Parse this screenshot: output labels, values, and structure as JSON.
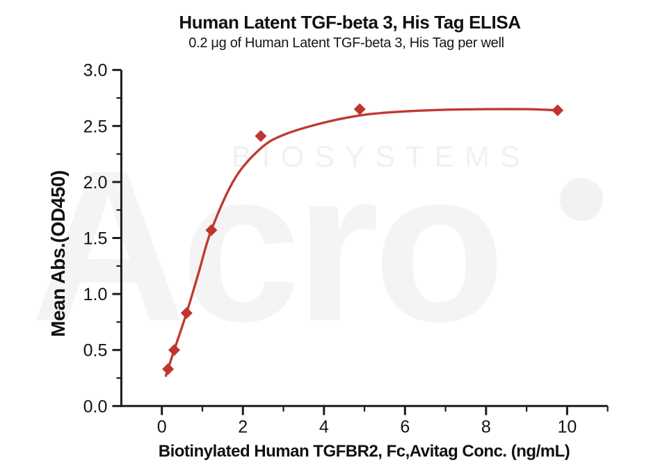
{
  "watermark": {
    "brand": "Acro",
    "sub_brand": "BIOSYSTEMS",
    "brand_color": "#f4f4f4",
    "sub_color": "#f1f1f1"
  },
  "chart_data": {
    "type": "scatter",
    "title": "Human Latent TGF-beta 3, His Tag ELISA",
    "subtitle": "0.2 μg of Human Latent TGF-beta 3, His Tag per well",
    "xlabel": "Biotinylated Human TGFBR2, Fc,Avitag Conc. (ng/mL)",
    "ylabel": "Mean Abs.(OD450)",
    "xlim": [
      -1,
      11
    ],
    "ylim": [
      0,
      3
    ],
    "grid": false,
    "legend": false,
    "marker": "diamond",
    "x": [
      0.153,
      0.305,
      0.61,
      1.221,
      2.441,
      4.883,
      9.766
    ],
    "y": [
      0.33,
      0.5,
      0.83,
      1.57,
      2.41,
      2.65,
      2.64
    ],
    "x_ticks": [
      0,
      2,
      4,
      6,
      8,
      10
    ],
    "x_tick_labels": [
      "0",
      "2",
      "4",
      "6",
      "8",
      "10"
    ],
    "x_minor_ticks": [
      1,
      3,
      5,
      7,
      9,
      11
    ],
    "y_ticks": [
      0,
      0.5,
      1,
      1.5,
      2,
      2.5,
      3
    ],
    "y_tick_labels": [
      "0.0",
      "0.5",
      "1.0",
      "1.5",
      "2.0",
      "2.5",
      "3.0"
    ],
    "y_minor_ticks": [
      0.25,
      0.75,
      1.25,
      1.75,
      2.25,
      2.75
    ],
    "fit_curve_points": [
      [
        0.1,
        0.27
      ],
      [
        0.153,
        0.33
      ],
      [
        0.305,
        0.5
      ],
      [
        0.61,
        0.83
      ],
      [
        0.9,
        1.18
      ],
      [
        1.221,
        1.57
      ],
      [
        1.8,
        2.03
      ],
      [
        2.441,
        2.3
      ],
      [
        3.0,
        2.42
      ],
      [
        4.0,
        2.53
      ],
      [
        5.0,
        2.6
      ],
      [
        6.0,
        2.63
      ],
      [
        7.0,
        2.645
      ],
      [
        8.0,
        2.65
      ],
      [
        9.0,
        2.65
      ],
      [
        9.766,
        2.64
      ]
    ],
    "colors": {
      "curve": "#c03a31",
      "marker": "#bf3530",
      "axis": "#1c1c1c",
      "text": "#131313"
    }
  }
}
